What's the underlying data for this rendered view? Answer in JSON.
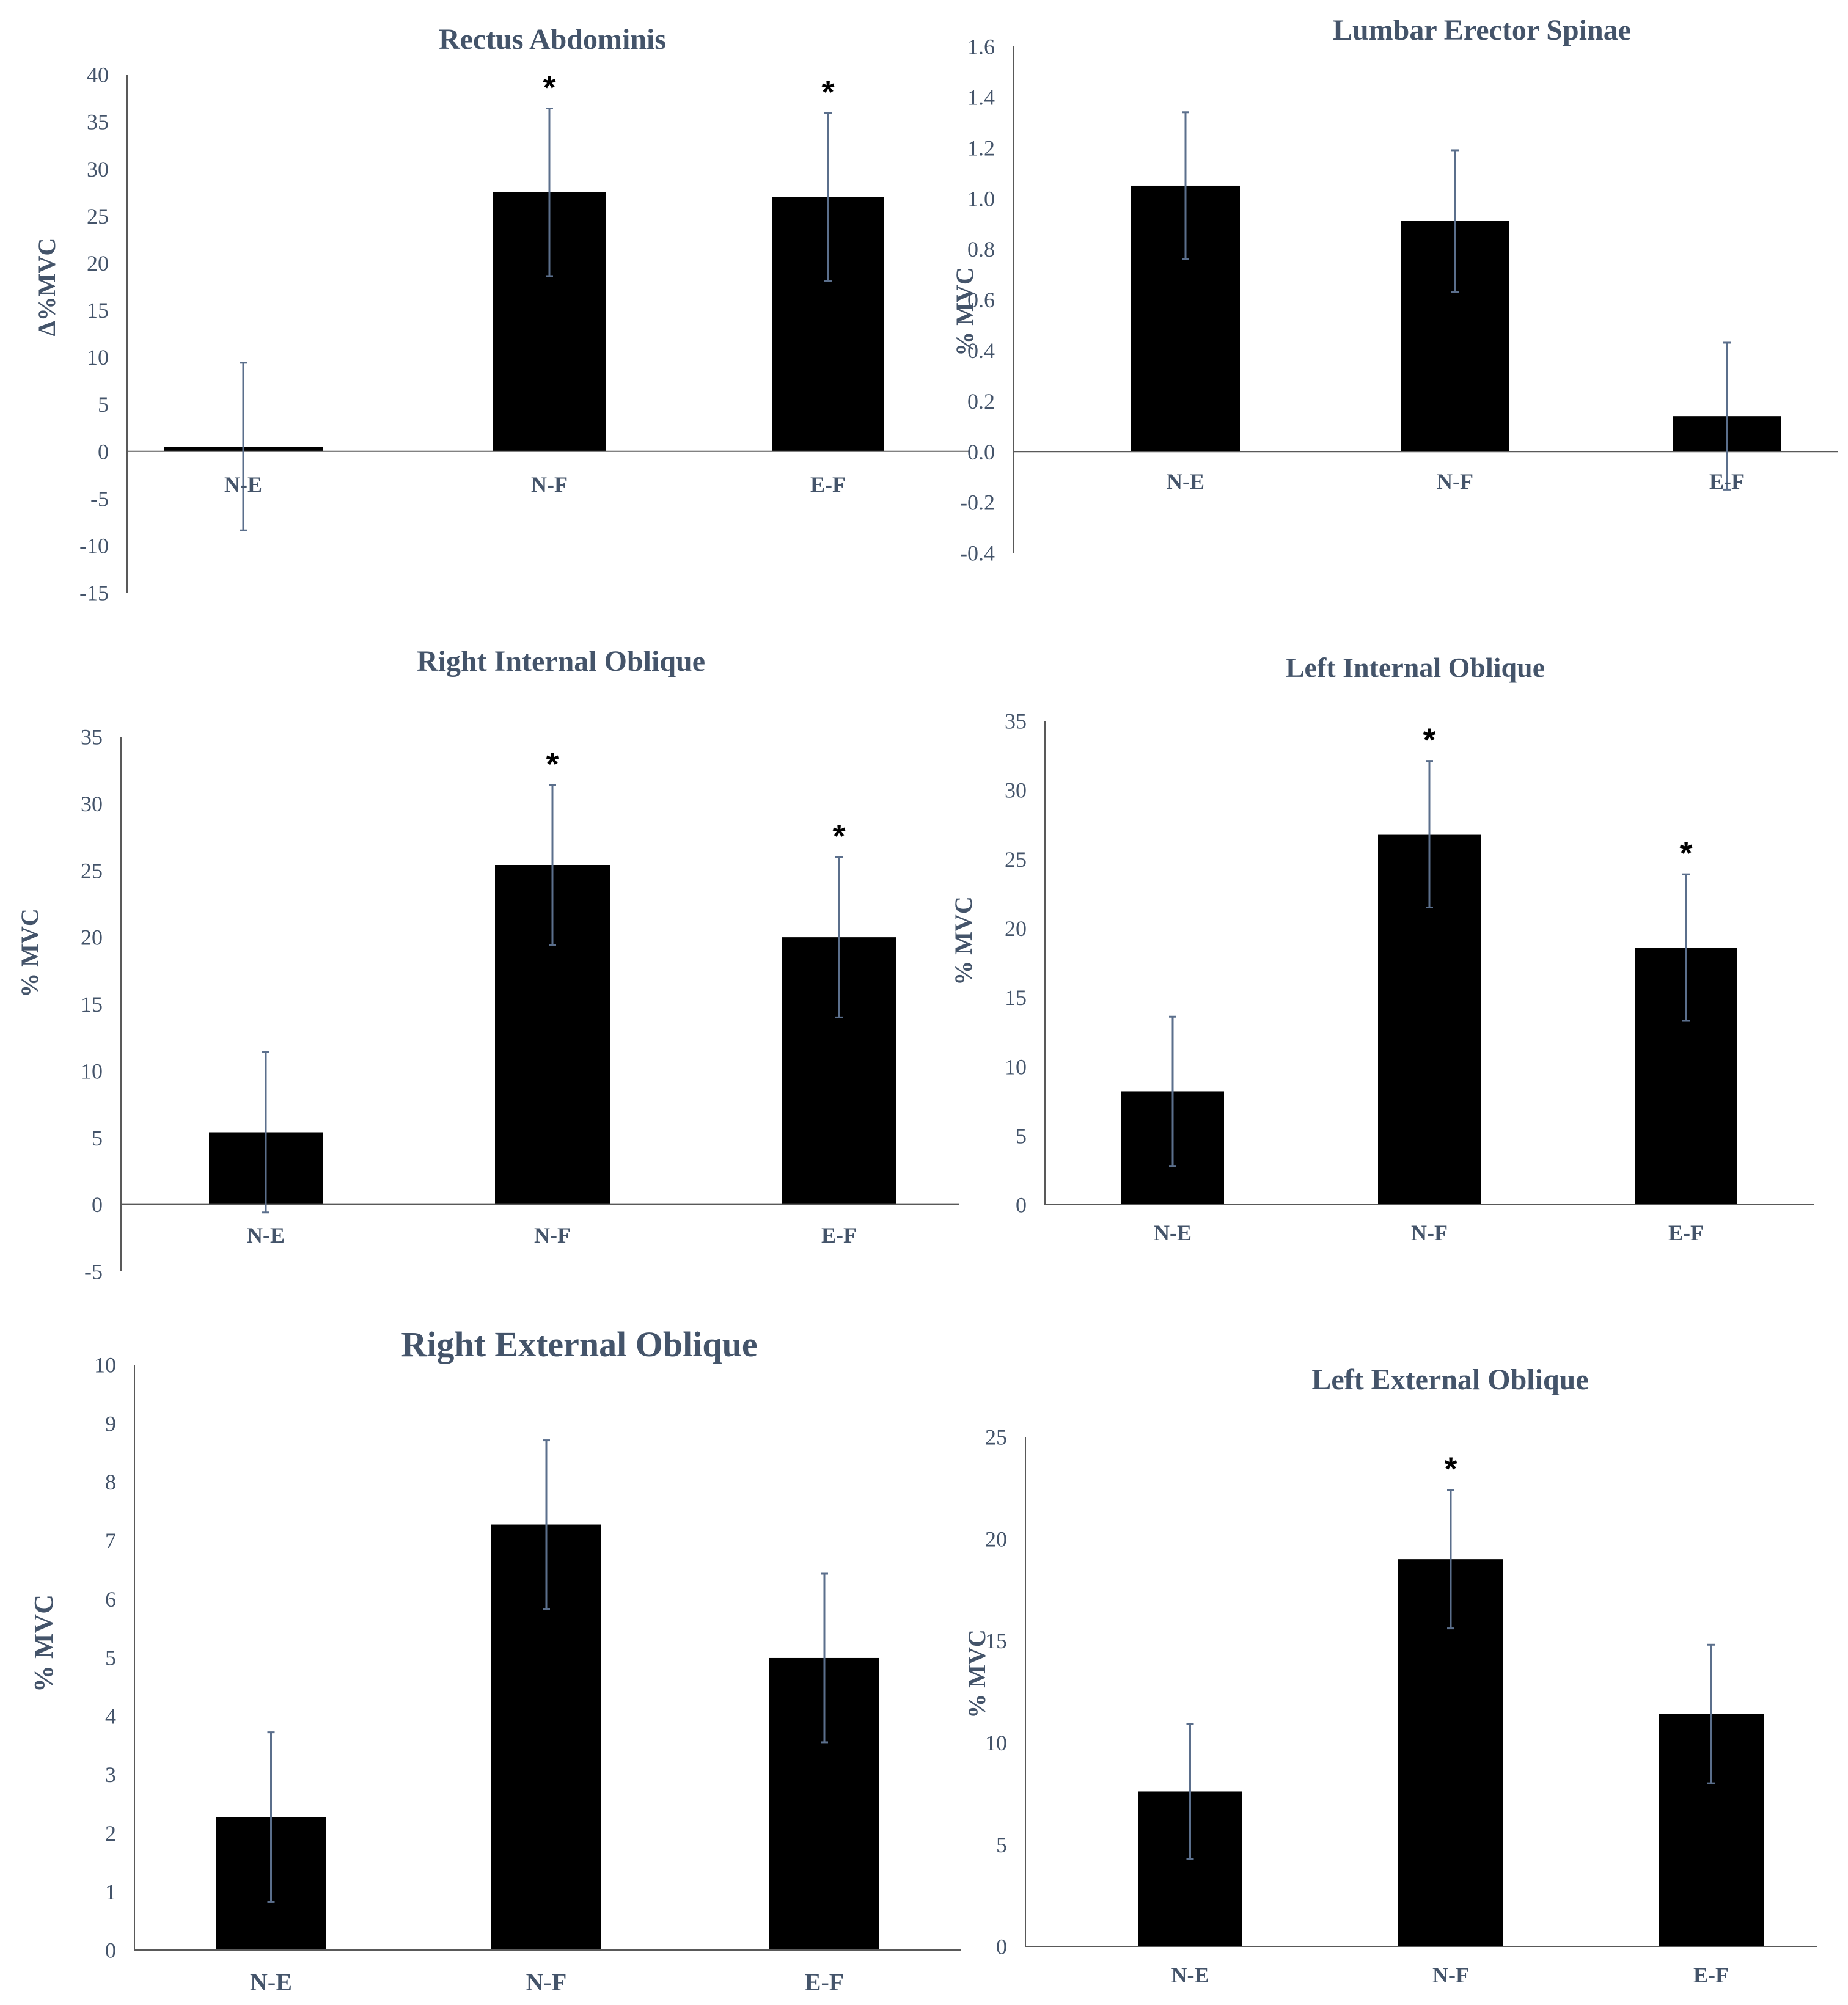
{
  "chart_data": [
    {
      "type": "bar",
      "title": "Rectus Abdominis",
      "ylabel": "Δ%MVC",
      "xlabel": "",
      "categories": [
        "N-E",
        "N-F",
        "E-F"
      ],
      "values": [
        0.5,
        27.5,
        27
      ],
      "errors": [
        8.9,
        8.9,
        8.9
      ],
      "significant": [
        false,
        true,
        true
      ],
      "ylim": [
        -15,
        40
      ],
      "yticks": [
        -15,
        -10,
        -5,
        0,
        5,
        10,
        15,
        20,
        25,
        30,
        35,
        40
      ],
      "tick_labels": [
        "-15",
        "-10",
        "-5",
        "0",
        "5",
        "10",
        "15",
        "20",
        "25",
        "30",
        "35",
        "40"
      ],
      "star_label": "*"
    },
    {
      "type": "bar",
      "title": "Lumbar Erector Spinae",
      "ylabel": "% MVC",
      "xlabel": "",
      "categories": [
        "N-E",
        "N-F",
        "E-F"
      ],
      "values": [
        1.05,
        0.91,
        0.14
      ],
      "errors": [
        0.29,
        0.28,
        0.29
      ],
      "significant": [
        false,
        false,
        false
      ],
      "ylim": [
        -0.4,
        1.6
      ],
      "yticks": [
        -0.4,
        -0.2,
        0,
        0.2,
        0.4,
        0.6,
        0.8,
        1.0,
        1.2,
        1.4,
        1.6
      ],
      "tick_labels": [
        "-0.4",
        "-0.2",
        "0.0",
        "0.2",
        "0.4",
        "0.6",
        "0.8",
        "1.0",
        "1.2",
        "1.4",
        "1.6"
      ],
      "star_label": "*"
    },
    {
      "type": "bar",
      "title": "Right Internal Oblique",
      "ylabel": "% MVC",
      "xlabel": "",
      "categories": [
        "N-E",
        "N-F",
        "E-F"
      ],
      "values": [
        5.4,
        25.4,
        20
      ],
      "errors": [
        6,
        6,
        6
      ],
      "significant": [
        false,
        true,
        true
      ],
      "ylim": [
        -5,
        35
      ],
      "yticks": [
        -5,
        0,
        5,
        10,
        15,
        20,
        25,
        30,
        35
      ],
      "tick_labels": [
        "-5",
        "0",
        "5",
        "10",
        "15",
        "20",
        "25",
        "30",
        "35"
      ],
      "star_label": "*"
    },
    {
      "type": "bar",
      "title": "Left Internal Oblique",
      "ylabel": "% MVC",
      "xlabel": "",
      "categories": [
        "N-E",
        "N-F",
        "E-F"
      ],
      "values": [
        8.2,
        26.8,
        18.6
      ],
      "errors": [
        5.4,
        5.3,
        5.3
      ],
      "significant": [
        false,
        true,
        true
      ],
      "ylim": [
        0,
        35
      ],
      "yticks": [
        0,
        5,
        10,
        15,
        20,
        25,
        30,
        35
      ],
      "tick_labels": [
        "0",
        "5",
        "10",
        "15",
        "20",
        "25",
        "30",
        "35"
      ],
      "star_label": "*"
    },
    {
      "type": "bar",
      "title": "Right External Oblique",
      "ylabel": "% MVC",
      "xlabel": "",
      "categories": [
        "N-E",
        "N-F",
        "E-F"
      ],
      "values": [
        2.27,
        7.27,
        4.99
      ],
      "errors": [
        1.45,
        1.44,
        1.44
      ],
      "significant": [
        false,
        false,
        false
      ],
      "ylim": [
        0,
        10
      ],
      "yticks": [
        0,
        1,
        2,
        3,
        4,
        5,
        6,
        7,
        8,
        9,
        10
      ],
      "tick_labels": [
        "0",
        "1",
        "2",
        "3",
        "4",
        "5",
        "6",
        "7",
        "8",
        "9",
        "10"
      ],
      "star_label": "*"
    },
    {
      "type": "bar",
      "title": "Left External Oblique",
      "ylabel": "% MVC",
      "xlabel": "",
      "categories": [
        "N-E",
        "N-F",
        "E-F"
      ],
      "values": [
        7.6,
        19,
        11.4
      ],
      "errors": [
        3.3,
        3.4,
        3.4
      ],
      "significant": [
        false,
        true,
        false
      ],
      "ylim": [
        0,
        25
      ],
      "yticks": [
        0,
        5,
        10,
        15,
        20,
        25
      ],
      "tick_labels": [
        "0",
        "5",
        "10",
        "15",
        "20",
        "25"
      ],
      "star_label": "*"
    }
  ]
}
